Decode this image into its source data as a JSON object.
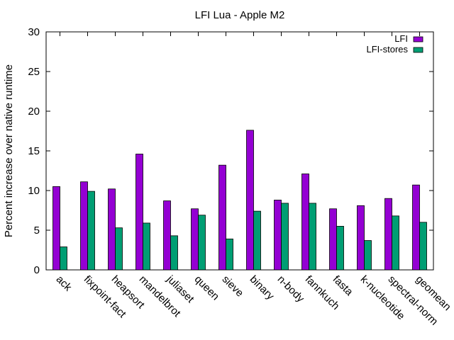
{
  "chart_data": {
    "type": "bar",
    "title": "LFI Lua - Apple M2",
    "xlabel": "",
    "ylabel": "Percent increase over native runtime",
    "ylim": [
      0,
      30
    ],
    "yticks": [
      0,
      5,
      10,
      15,
      20,
      25,
      30
    ],
    "grid": false,
    "legend_position": "top-right",
    "categories": [
      "ack",
      "fixpoint-fact",
      "heapsort",
      "mandelbrot",
      "juliaset",
      "queen",
      "sieve",
      "binary",
      "n-body",
      "fannkuch",
      "fasta",
      "k-nucleotide",
      "spectral-norm",
      "geomean"
    ],
    "series": [
      {
        "name": "LFI",
        "color": "#9400d3",
        "values": [
          10.5,
          11.1,
          10.2,
          14.6,
          8.7,
          7.7,
          13.2,
          17.6,
          8.8,
          12.1,
          7.7,
          8.1,
          9.0,
          10.7
        ]
      },
      {
        "name": "LFI-stores",
        "color": "#009e73",
        "values": [
          2.9,
          9.9,
          5.3,
          5.9,
          4.3,
          6.9,
          3.9,
          7.4,
          8.4,
          8.4,
          5.5,
          3.7,
          6.8,
          6.0
        ]
      }
    ]
  }
}
